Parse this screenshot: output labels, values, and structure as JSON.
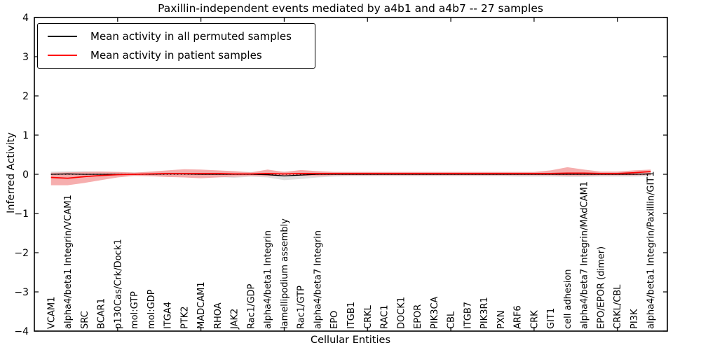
{
  "chart_data": {
    "type": "line",
    "title": "Paxillin-independent events mediated by a4b1 and a4b7 -- 27 samples",
    "xlabel": "Cellular Entities",
    "ylabel": "Inferred Activity",
    "ylim": [
      -4,
      4
    ],
    "yticks": [
      -4,
      -3,
      -2,
      -1,
      0,
      1,
      2,
      3,
      4
    ],
    "grid": false,
    "legend_position": "upper-left",
    "categories": [
      "VCAM1",
      "alpha4/beta1 Integrin/VCAM1",
      "SRC",
      "BCAR1",
      "p130Cas/Crk/Dock1",
      "mol:GTP",
      "mol:GDP",
      "ITGA4",
      "PTK2",
      "MADCAM1",
      "RHOA",
      "JAK2",
      "Rac1/GDP",
      "alpha4/beta1 Integrin",
      "lamellipodium assembly",
      "Rac1/GTP",
      "alpha4/beta7 Integrin",
      "EPO",
      "ITGB1",
      "CRKL",
      "RAC1",
      "DOCK1",
      "EPOR",
      "PIK3CA",
      "CBL",
      "ITGB7",
      "PIK3R1",
      "PXN",
      "ARF6",
      "CRK",
      "GIT1",
      "cell adhesion",
      "alpha4/beta7 Integrin/MAdCAM1",
      "EPO/EPOR (dimer)",
      "CRKL/CBL",
      "PI3K",
      "alpha4/beta1 Integrin/Paxillin/GIT1"
    ],
    "series": [
      {
        "name": "Mean activity in all permuted samples",
        "color": "#000000",
        "band_color": "#dcdcdc",
        "values": [
          0.0,
          0.01,
          0.0,
          0.0,
          0.0,
          0.0,
          0.0,
          0.01,
          0.01,
          0.0,
          0.0,
          0.0,
          0.0,
          -0.01,
          -0.04,
          -0.02,
          0.0,
          0.0,
          0.0,
          0.0,
          0.0,
          0.0,
          0.0,
          0.0,
          0.0,
          0.0,
          0.0,
          0.0,
          0.0,
          0.0,
          0.0,
          0.0,
          0.0,
          0.0,
          0.0,
          0.0,
          0.01
        ],
        "band_lo": [
          -0.07,
          -0.07,
          -0.07,
          -0.06,
          -0.05,
          -0.04,
          -0.05,
          -0.06,
          -0.06,
          -0.07,
          -0.07,
          -0.09,
          -0.06,
          -0.08,
          -0.15,
          -0.12,
          -0.08,
          -0.06,
          -0.05,
          -0.05,
          -0.05,
          -0.05,
          -0.05,
          -0.05,
          -0.05,
          -0.05,
          -0.05,
          -0.05,
          -0.06,
          -0.06,
          -0.06,
          -0.07,
          -0.07,
          -0.06,
          -0.06,
          -0.06,
          -0.05
        ],
        "band_hi": [
          0.07,
          0.08,
          0.08,
          0.07,
          0.06,
          0.05,
          0.06,
          0.07,
          0.07,
          0.08,
          0.07,
          0.07,
          0.06,
          0.07,
          0.07,
          0.08,
          0.07,
          0.06,
          0.05,
          0.05,
          0.05,
          0.05,
          0.05,
          0.05,
          0.05,
          0.05,
          0.05,
          0.05,
          0.05,
          0.05,
          0.06,
          0.06,
          0.06,
          0.05,
          0.05,
          0.06,
          0.06
        ]
      },
      {
        "name": "Mean activity in patient samples",
        "color": "#ff0000",
        "band_color": "#f4a0a0",
        "values": [
          -0.08,
          -0.1,
          -0.06,
          -0.03,
          -0.01,
          0.0,
          0.01,
          0.02,
          0.02,
          0.02,
          0.02,
          0.01,
          0.01,
          0.02,
          0.01,
          0.02,
          0.02,
          0.02,
          0.02,
          0.02,
          0.02,
          0.02,
          0.02,
          0.02,
          0.02,
          0.02,
          0.02,
          0.02,
          0.02,
          0.02,
          0.02,
          0.03,
          0.03,
          0.02,
          0.02,
          0.04,
          0.07
        ],
        "band_lo": [
          -0.28,
          -0.28,
          -0.22,
          -0.15,
          -0.08,
          -0.04,
          -0.05,
          -0.07,
          -0.08,
          -0.1,
          -0.08,
          -0.06,
          -0.04,
          -0.05,
          -0.04,
          -0.04,
          -0.05,
          -0.03,
          -0.03,
          -0.03,
          -0.03,
          -0.03,
          -0.03,
          -0.03,
          -0.03,
          -0.03,
          -0.03,
          -0.03,
          -0.03,
          -0.03,
          -0.03,
          -0.04,
          -0.04,
          -0.03,
          -0.03,
          -0.03,
          -0.02
        ],
        "band_hi": [
          0.04,
          0.05,
          0.06,
          0.07,
          0.06,
          0.04,
          0.07,
          0.1,
          0.13,
          0.12,
          0.1,
          0.08,
          0.05,
          0.12,
          0.06,
          0.11,
          0.08,
          0.06,
          0.06,
          0.06,
          0.06,
          0.06,
          0.06,
          0.06,
          0.06,
          0.06,
          0.06,
          0.06,
          0.06,
          0.06,
          0.1,
          0.18,
          0.12,
          0.07,
          0.07,
          0.1,
          0.12
        ]
      }
    ],
    "zero_line": {
      "y": 0,
      "style": "dotted",
      "color": "#222222"
    }
  }
}
